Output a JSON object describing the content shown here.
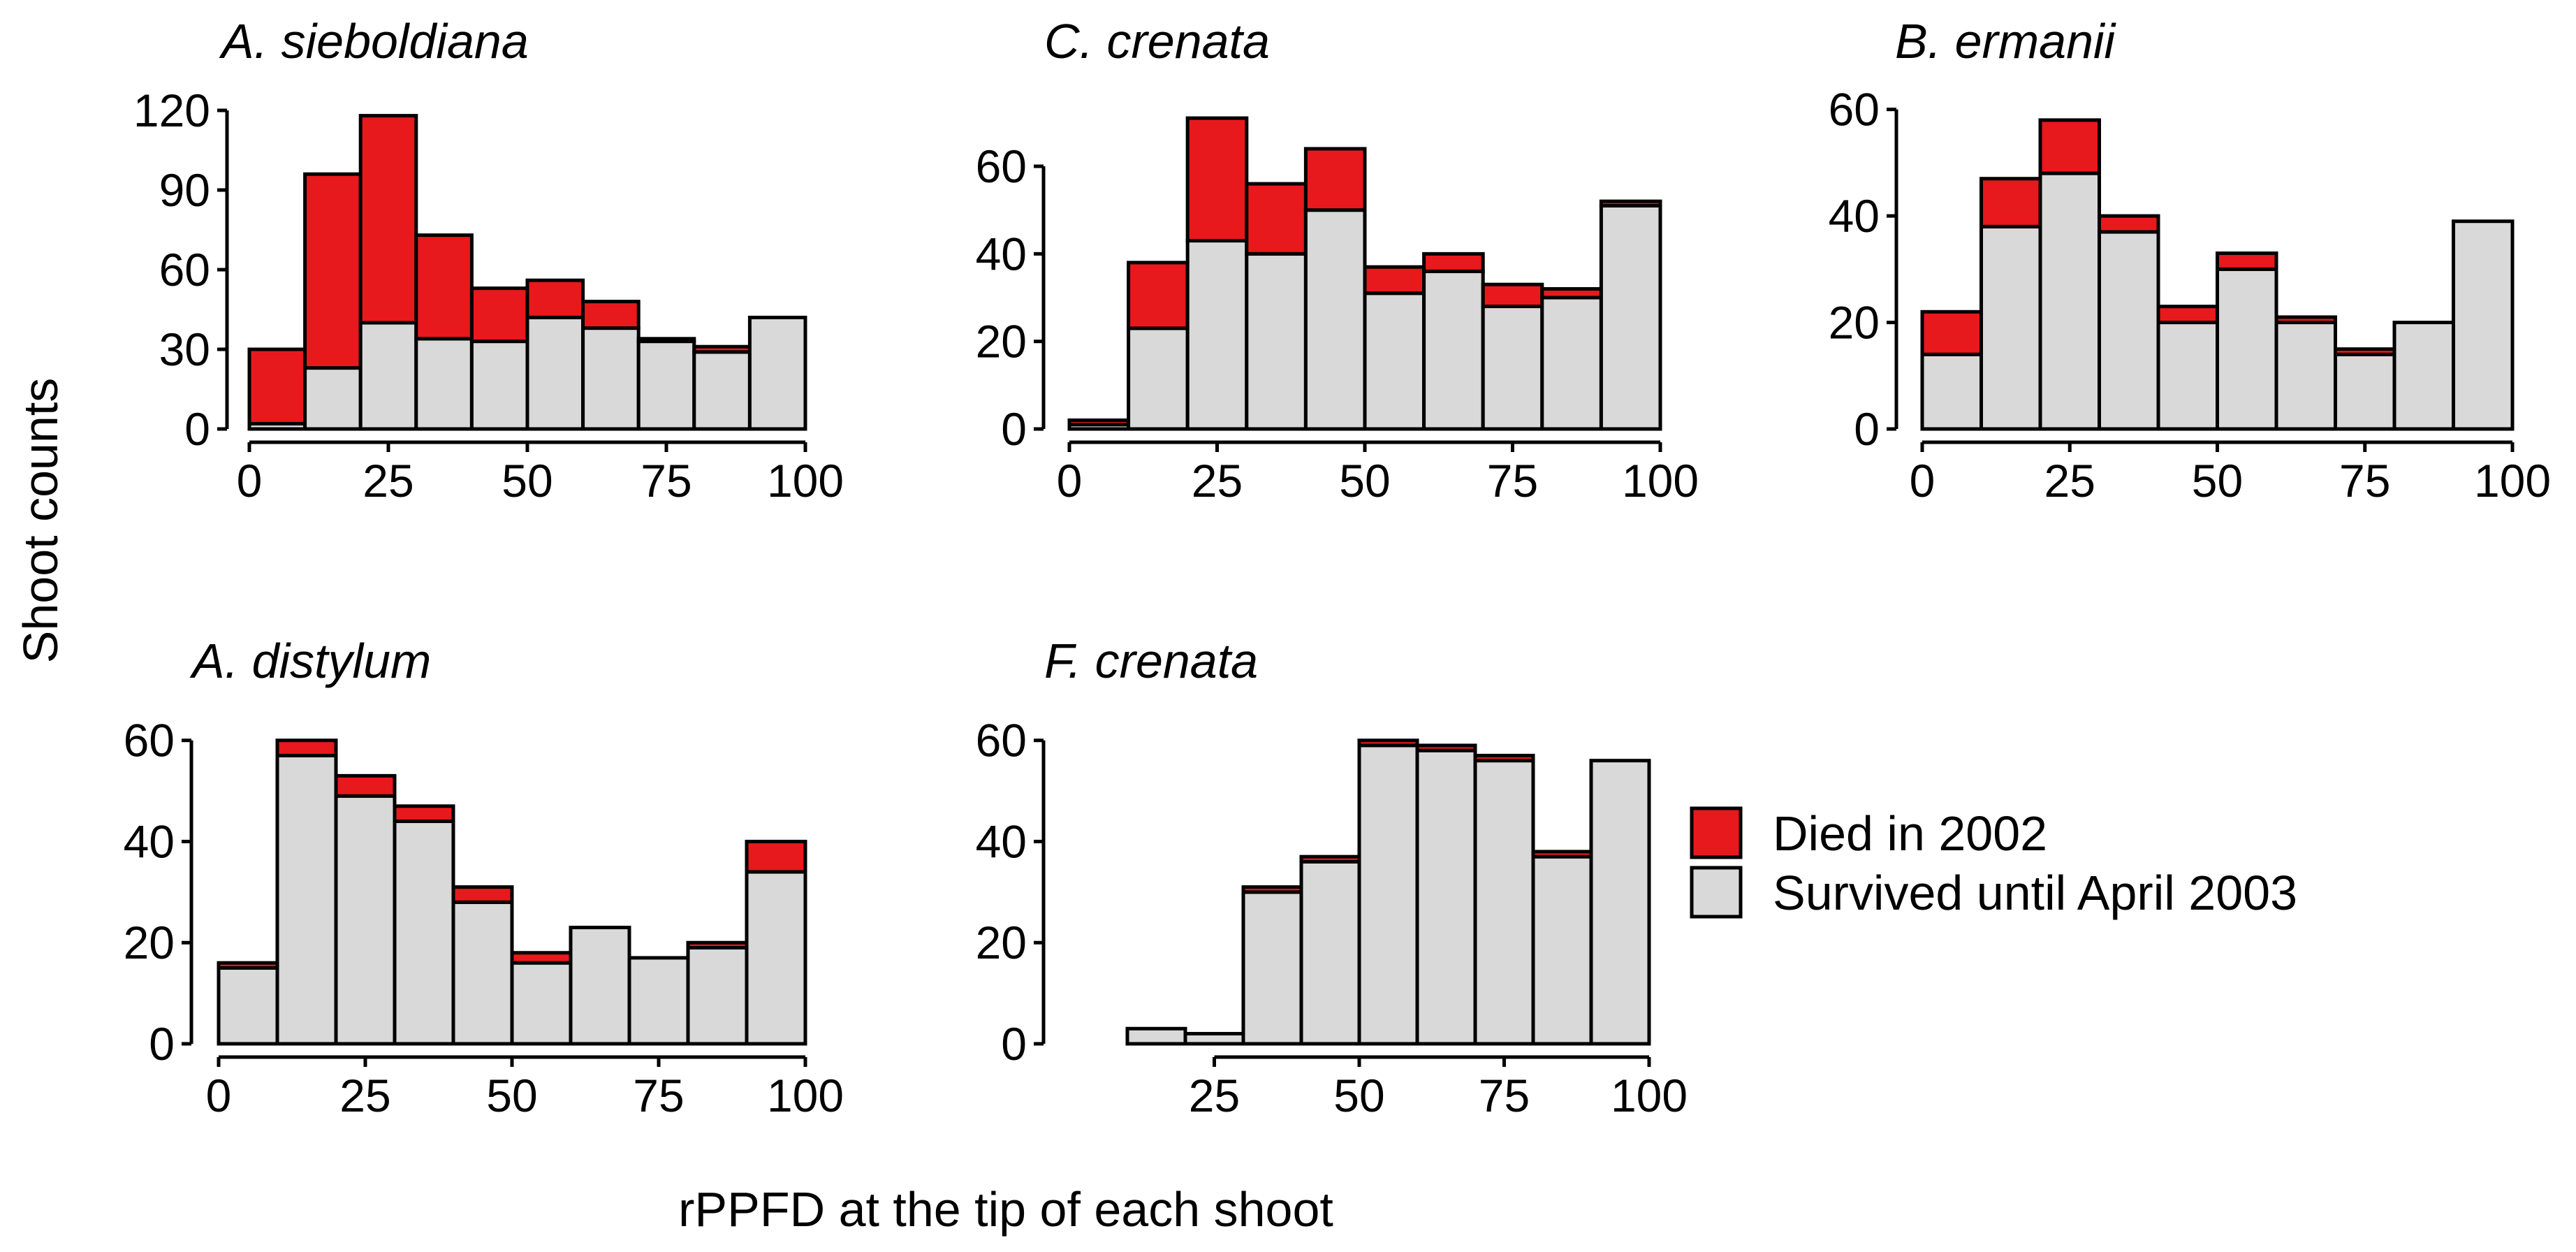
{
  "colors": {
    "died": "#E8191C",
    "survived": "#D9D9D9",
    "outline": "#000000"
  },
  "chart_data": {
    "type": "bar",
    "variant": "stacked-histogram",
    "xlabel": "rPPFD at the tip of each shoot",
    "ylabel": "Shoot counts",
    "legend": {
      "placement": "right",
      "entries": [
        {
          "label": "Died in 2002",
          "color": "#E8191C"
        },
        {
          "label": "Survived until April 2003",
          "color": "#D9D9D9"
        }
      ]
    },
    "bin_width": 10,
    "panels": [
      {
        "title": "A. sieboldiana",
        "xlim": [
          0,
          100
        ],
        "xticks": [
          0,
          25,
          50,
          75,
          100
        ],
        "ylim": [
          0,
          120
        ],
        "yticks": [
          0,
          30,
          60,
          90,
          120
        ],
        "bins": [
          0,
          10,
          20,
          30,
          40,
          50,
          60,
          70,
          80,
          90
        ],
        "series": [
          {
            "name": "Survived until April 2003",
            "values": [
              2,
              23,
              40,
              34,
              33,
              42,
              38,
              33,
              29,
              42
            ]
          },
          {
            "name": "Died in 2002",
            "values": [
              28,
              73,
              78,
              39,
              20,
              14,
              10,
              1,
              2,
              0
            ]
          }
        ]
      },
      {
        "title": "C. crenata",
        "xlim": [
          0,
          100
        ],
        "xticks": [
          0,
          25,
          50,
          75,
          100
        ],
        "ylim": [
          0,
          75
        ],
        "yticks": [
          0,
          20,
          40,
          60
        ],
        "bins": [
          0,
          10,
          20,
          30,
          40,
          50,
          60,
          70,
          80,
          90
        ],
        "series": [
          {
            "name": "Survived until April 2003",
            "values": [
              1,
              23,
              43,
              40,
              50,
              31,
              36,
              28,
              30,
              51
            ]
          },
          {
            "name": "Died in 2002",
            "values": [
              1,
              15,
              28,
              16,
              14,
              6,
              4,
              5,
              2,
              1
            ]
          }
        ]
      },
      {
        "title": "B. ermanii",
        "xlim": [
          0,
          100
        ],
        "xticks": [
          0,
          25,
          50,
          75,
          100
        ],
        "ylim": [
          0,
          61
        ],
        "yticks": [
          0,
          20,
          40,
          60
        ],
        "bins": [
          0,
          10,
          20,
          30,
          40,
          50,
          60,
          70,
          80,
          90
        ],
        "series": [
          {
            "name": "Survived until April 2003",
            "values": [
              14,
              38,
              48,
              37,
              20,
              30,
              20,
              14,
              20,
              39
            ]
          },
          {
            "name": "Died in 2002",
            "values": [
              8,
              9,
              10,
              3,
              3,
              3,
              1,
              1,
              0,
              0
            ]
          }
        ]
      },
      {
        "title": "A. distylum",
        "xlim": [
          0,
          100
        ],
        "xticks": [
          0,
          25,
          50,
          75,
          100
        ],
        "ylim": [
          0,
          63
        ],
        "yticks": [
          0,
          20,
          40,
          60
        ],
        "bins": [
          0,
          10,
          20,
          30,
          40,
          50,
          60,
          70,
          80,
          90
        ],
        "series": [
          {
            "name": "Survived until April 2003",
            "values": [
              15,
              57,
              49,
              44,
              28,
              16,
              23,
              17,
              19,
              34
            ]
          },
          {
            "name": "Died in 2002",
            "values": [
              1,
              3,
              4,
              3,
              3,
              2,
              0,
              0,
              1,
              6
            ]
          }
        ]
      },
      {
        "title": "F. crenata",
        "xlim": [
          0,
          100
        ],
        "xticks": [
          25,
          50,
          75,
          100
        ],
        "ylim": [
          0,
          63
        ],
        "yticks": [
          0,
          20,
          40,
          60
        ],
        "bins": [
          10,
          20,
          30,
          40,
          50,
          60,
          70,
          80,
          90
        ],
        "series": [
          {
            "name": "Survived until April 2003",
            "values": [
              3,
              2,
              30,
              36,
              59,
              58,
              56,
              37,
              56
            ]
          },
          {
            "name": "Died in 2002",
            "values": [
              0,
              0,
              1,
              1,
              1,
              1,
              1,
              1,
              0
            ]
          }
        ]
      }
    ]
  }
}
